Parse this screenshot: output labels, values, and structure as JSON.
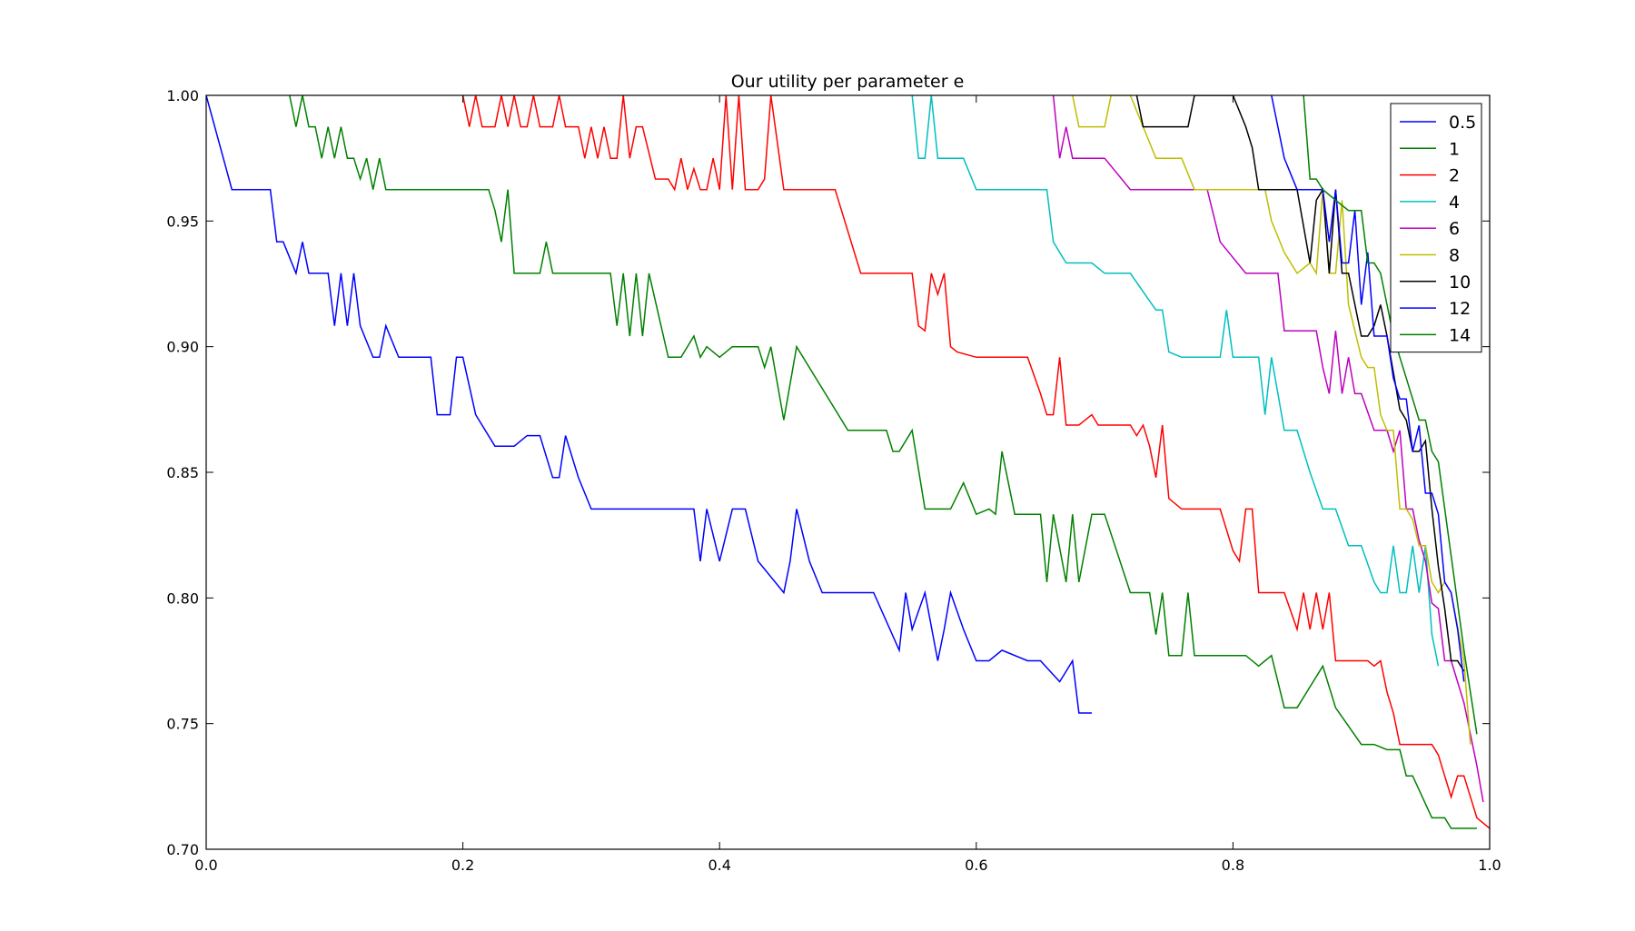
{
  "chart_data": {
    "type": "line",
    "title": "Our utility per parameter e",
    "xlabel": "",
    "ylabel": "",
    "xlim": [
      0.0,
      1.0
    ],
    "ylim": [
      0.7,
      1.0
    ],
    "xticks": [
      "0.0",
      "0.2",
      "0.4",
      "0.6",
      "0.8",
      "1.0"
    ],
    "yticks": [
      "0.70",
      "0.75",
      "0.80",
      "0.85",
      "0.90",
      "0.95",
      "1.00"
    ],
    "grid": false,
    "legend_position": "top-right",
    "series": [
      {
        "name": "0.5",
        "color": "#0000ff",
        "x": [
          0.0,
          0.02,
          0.05,
          0.055,
          0.06,
          0.07,
          0.075,
          0.08,
          0.095,
          0.1,
          0.105,
          0.11,
          0.115,
          0.12,
          0.13,
          0.135,
          0.14,
          0.15,
          0.175,
          0.18,
          0.19,
          0.195,
          0.2,
          0.21,
          0.225,
          0.235,
          0.24,
          0.25,
          0.26,
          0.27,
          0.275,
          0.28,
          0.29,
          0.3,
          0.35,
          0.38,
          0.385,
          0.39,
          0.4,
          0.41,
          0.42,
          0.43,
          0.45,
          0.455,
          0.46,
          0.47,
          0.48,
          0.49,
          0.5,
          0.52,
          0.54,
          0.545,
          0.55,
          0.56,
          0.57,
          0.575,
          0.58,
          0.59,
          0.6,
          0.61,
          0.62,
          0.64,
          0.65,
          0.665,
          0.67,
          0.675,
          0.68,
          0.685,
          0.69
        ],
        "y": [
          1.0,
          0.9625,
          0.9625,
          0.9417,
          0.9417,
          0.9292,
          0.9417,
          0.9292,
          0.9292,
          0.9083,
          0.9292,
          0.9083,
          0.9292,
          0.9083,
          0.8958,
          0.8958,
          0.9083,
          0.8958,
          0.8958,
          0.8729,
          0.8729,
          0.8958,
          0.8958,
          0.8729,
          0.8604,
          0.8604,
          0.8604,
          0.8646,
          0.8646,
          0.8479,
          0.8479,
          0.8646,
          0.8479,
          0.8354,
          0.8354,
          0.8354,
          0.8146,
          0.8354,
          0.8146,
          0.8354,
          0.8354,
          0.8146,
          0.8021,
          0.8146,
          0.8354,
          0.8146,
          0.8021,
          0.8021,
          0.8021,
          0.8021,
          0.7792,
          0.8021,
          0.7875,
          0.8021,
          0.775,
          0.7875,
          0.8021,
          0.7875,
          0.775,
          0.775,
          0.7792,
          0.775,
          0.775,
          0.7667,
          0.7708,
          0.775,
          0.7542,
          0.7542,
          0.7542
        ]
      },
      {
        "name": "1",
        "color": "#008000",
        "x": [
          0.065,
          0.07,
          0.075,
          0.08,
          0.085,
          0.09,
          0.095,
          0.1,
          0.105,
          0.11,
          0.115,
          0.12,
          0.125,
          0.13,
          0.135,
          0.14,
          0.2,
          0.22,
          0.225,
          0.23,
          0.235,
          0.24,
          0.26,
          0.265,
          0.27,
          0.28,
          0.3,
          0.315,
          0.32,
          0.325,
          0.33,
          0.335,
          0.34,
          0.345,
          0.36,
          0.37,
          0.38,
          0.385,
          0.39,
          0.4,
          0.41,
          0.42,
          0.43,
          0.435,
          0.44,
          0.45,
          0.46,
          0.5,
          0.52,
          0.53,
          0.535,
          0.54,
          0.55,
          0.56,
          0.58,
          0.59,
          0.6,
          0.61,
          0.615,
          0.62,
          0.63,
          0.65,
          0.655,
          0.66,
          0.67,
          0.675,
          0.68,
          0.69,
          0.695,
          0.7,
          0.72,
          0.735,
          0.74,
          0.745,
          0.75,
          0.76,
          0.765,
          0.77,
          0.8,
          0.81,
          0.82,
          0.825,
          0.83,
          0.84,
          0.85,
          0.87,
          0.88,
          0.9,
          0.91,
          0.92,
          0.93,
          0.935,
          0.94,
          0.955,
          0.96,
          0.965,
          0.97,
          0.99
        ],
        "y": [
          1.0,
          0.9875,
          1.0,
          0.9875,
          0.9875,
          0.975,
          0.9875,
          0.975,
          0.9875,
          0.975,
          0.975,
          0.9667,
          0.975,
          0.9625,
          0.975,
          0.9625,
          0.9625,
          0.9625,
          0.9542,
          0.9417,
          0.9625,
          0.9292,
          0.9292,
          0.9417,
          0.9292,
          0.9292,
          0.9292,
          0.9292,
          0.9083,
          0.9292,
          0.9042,
          0.9292,
          0.9042,
          0.9292,
          0.8958,
          0.8958,
          0.9042,
          0.8958,
          0.9,
          0.8958,
          0.9,
          0.9,
          0.9,
          0.8917,
          0.9,
          0.8708,
          0.9,
          0.8667,
          0.8667,
          0.8667,
          0.8583,
          0.8583,
          0.8667,
          0.8354,
          0.8354,
          0.8458,
          0.8333,
          0.8354,
          0.8333,
          0.8583,
          0.8333,
          0.8333,
          0.8063,
          0.8333,
          0.8063,
          0.8333,
          0.8063,
          0.8333,
          0.8333,
          0.8333,
          0.8021,
          0.8021,
          0.7854,
          0.8021,
          0.7771,
          0.7771,
          0.8021,
          0.7771,
          0.7771,
          0.7771,
          0.7729,
          0.775,
          0.7771,
          0.7563,
          0.7563,
          0.7729,
          0.7563,
          0.7417,
          0.7417,
          0.7396,
          0.7396,
          0.7292,
          0.7292,
          0.7125,
          0.7125,
          0.7125,
          0.7083,
          0.7083
        ]
      },
      {
        "name": "2",
        "color": "#ff0000",
        "x": [
          0.2,
          0.205,
          0.21,
          0.215,
          0.225,
          0.23,
          0.235,
          0.24,
          0.245,
          0.25,
          0.255,
          0.26,
          0.27,
          0.275,
          0.28,
          0.29,
          0.295,
          0.3,
          0.305,
          0.31,
          0.315,
          0.32,
          0.325,
          0.33,
          0.335,
          0.34,
          0.35,
          0.355,
          0.36,
          0.365,
          0.37,
          0.375,
          0.38,
          0.385,
          0.39,
          0.395,
          0.4,
          0.405,
          0.41,
          0.415,
          0.42,
          0.425,
          0.43,
          0.435,
          0.44,
          0.45,
          0.48,
          0.49,
          0.51,
          0.55,
          0.555,
          0.56,
          0.565,
          0.57,
          0.575,
          0.58,
          0.585,
          0.6,
          0.62,
          0.64,
          0.65,
          0.655,
          0.66,
          0.665,
          0.67,
          0.68,
          0.69,
          0.695,
          0.7,
          0.72,
          0.725,
          0.73,
          0.735,
          0.74,
          0.745,
          0.75,
          0.76,
          0.77,
          0.78,
          0.79,
          0.8,
          0.805,
          0.81,
          0.815,
          0.82,
          0.83,
          0.84,
          0.85,
          0.855,
          0.86,
          0.865,
          0.87,
          0.875,
          0.88,
          0.89,
          0.9,
          0.905,
          0.91,
          0.915,
          0.92,
          0.925,
          0.93,
          0.94,
          0.945,
          0.95,
          0.955,
          0.96,
          0.965,
          0.97,
          0.975,
          0.98,
          0.99,
          1.0
        ],
        "y": [
          1.0,
          0.9875,
          1.0,
          0.9875,
          0.9875,
          1.0,
          0.9875,
          1.0,
          0.9875,
          0.9875,
          1.0,
          0.9875,
          0.9875,
          1.0,
          0.9875,
          0.9875,
          0.975,
          0.9875,
          0.975,
          0.9875,
          0.975,
          0.975,
          1.0,
          0.975,
          0.9875,
          0.9875,
          0.9667,
          0.9667,
          0.9667,
          0.9625,
          0.975,
          0.9625,
          0.9708,
          0.9625,
          0.9625,
          0.975,
          0.9625,
          1.0,
          0.9625,
          1.0,
          0.9625,
          0.9625,
          0.9625,
          0.9667,
          1.0,
          0.9625,
          0.9625,
          0.9625,
          0.9292,
          0.9292,
          0.9083,
          0.9063,
          0.9292,
          0.9208,
          0.9292,
          0.9,
          0.8979,
          0.8958,
          0.8958,
          0.8958,
          0.8813,
          0.8729,
          0.8729,
          0.8958,
          0.8688,
          0.8688,
          0.8729,
          0.8688,
          0.8688,
          0.8688,
          0.8646,
          0.8688,
          0.8604,
          0.8479,
          0.8688,
          0.8396,
          0.8354,
          0.8354,
          0.8354,
          0.8354,
          0.8188,
          0.8146,
          0.8354,
          0.8354,
          0.8021,
          0.8021,
          0.8021,
          0.7875,
          0.8021,
          0.7875,
          0.8021,
          0.7875,
          0.8021,
          0.775,
          0.775,
          0.775,
          0.775,
          0.7729,
          0.775,
          0.7625,
          0.7542,
          0.7417,
          0.7417,
          0.7417,
          0.7417,
          0.7417,
          0.7375,
          0.7292,
          0.7208,
          0.7292,
          0.7292,
          0.7125,
          0.7083
        ]
      },
      {
        "name": "4",
        "color": "#00bfbf",
        "x": [
          0.55,
          0.555,
          0.56,
          0.565,
          0.57,
          0.575,
          0.58,
          0.59,
          0.6,
          0.61,
          0.64,
          0.65,
          0.655,
          0.66,
          0.67,
          0.68,
          0.69,
          0.7,
          0.72,
          0.74,
          0.745,
          0.75,
          0.76,
          0.77,
          0.78,
          0.79,
          0.795,
          0.8,
          0.81,
          0.82,
          0.825,
          0.83,
          0.835,
          0.84,
          0.85,
          0.86,
          0.87,
          0.88,
          0.89,
          0.9,
          0.91,
          0.915,
          0.92,
          0.925,
          0.93,
          0.935,
          0.94,
          0.945,
          0.95,
          0.955,
          0.96
        ],
        "y": [
          1.0,
          0.975,
          0.975,
          1.0,
          0.975,
          0.975,
          0.975,
          0.975,
          0.9625,
          0.9625,
          0.9625,
          0.9625,
          0.9625,
          0.9417,
          0.9333,
          0.9333,
          0.9333,
          0.9292,
          0.9292,
          0.9146,
          0.9146,
          0.8979,
          0.8958,
          0.8958,
          0.8958,
          0.8958,
          0.9146,
          0.8958,
          0.8958,
          0.8958,
          0.8729,
          0.8958,
          0.8813,
          0.8667,
          0.8667,
          0.85,
          0.8354,
          0.8354,
          0.8208,
          0.8208,
          0.8063,
          0.8021,
          0.8021,
          0.8208,
          0.8021,
          0.8021,
          0.8208,
          0.8021,
          0.8208,
          0.7854,
          0.7729
        ]
      },
      {
        "name": "6",
        "color": "#bf00bf",
        "x": [
          0.66,
          0.665,
          0.67,
          0.675,
          0.68,
          0.7,
          0.72,
          0.76,
          0.78,
          0.79,
          0.81,
          0.82,
          0.835,
          0.84,
          0.86,
          0.865,
          0.87,
          0.875,
          0.88,
          0.885,
          0.89,
          0.895,
          0.9,
          0.91,
          0.915,
          0.92,
          0.925,
          0.93,
          0.935,
          0.94,
          0.945,
          0.95,
          0.955,
          0.96,
          0.965,
          0.97,
          0.98,
          0.99,
          0.995
        ],
        "y": [
          1.0,
          0.975,
          0.9875,
          0.975,
          0.975,
          0.975,
          0.9625,
          0.9625,
          0.9625,
          0.9417,
          0.9292,
          0.9292,
          0.9292,
          0.9063,
          0.9063,
          0.9063,
          0.8917,
          0.8813,
          0.9063,
          0.8813,
          0.8958,
          0.8813,
          0.8813,
          0.8667,
          0.8667,
          0.8667,
          0.8583,
          0.8667,
          0.8354,
          0.8354,
          0.8229,
          0.8146,
          0.7979,
          0.7958,
          0.775,
          0.775,
          0.7583,
          0.7333,
          0.7188
        ]
      },
      {
        "name": "8",
        "color": "#bfbf00",
        "x": [
          0.675,
          0.68,
          0.69,
          0.7,
          0.705,
          0.72,
          0.73,
          0.74,
          0.76,
          0.77,
          0.78,
          0.8,
          0.82,
          0.825,
          0.83,
          0.84,
          0.85,
          0.86,
          0.865,
          0.87,
          0.875,
          0.88,
          0.885,
          0.89,
          0.9,
          0.905,
          0.91,
          0.915,
          0.92,
          0.925,
          0.93,
          0.935,
          0.94,
          0.945,
          0.95,
          0.955,
          0.96,
          0.965,
          0.97,
          0.98,
          0.985
        ],
        "y": [
          1.0,
          0.9875,
          0.9875,
          0.9875,
          1.0,
          1.0,
          0.9875,
          0.975,
          0.975,
          0.9625,
          0.9625,
          0.9625,
          0.9625,
          0.9625,
          0.95,
          0.9375,
          0.9292,
          0.9333,
          0.9292,
          0.9625,
          0.9292,
          0.9292,
          0.9583,
          0.9167,
          0.8958,
          0.8917,
          0.8917,
          0.8729,
          0.8667,
          0.8667,
          0.8354,
          0.8354,
          0.8313,
          0.8208,
          0.8208,
          0.8063,
          0.8021,
          0.8063,
          0.8021,
          0.775,
          0.7417
        ]
      },
      {
        "name": "10",
        "color": "#000000",
        "x": [
          0.725,
          0.73,
          0.735,
          0.75,
          0.765,
          0.77,
          0.8,
          0.81,
          0.815,
          0.82,
          0.83,
          0.84,
          0.85,
          0.86,
          0.865,
          0.87,
          0.875,
          0.88,
          0.885,
          0.89,
          0.9,
          0.905,
          0.91,
          0.915,
          0.92,
          0.93,
          0.935,
          0.94,
          0.945,
          0.95,
          0.955,
          0.96,
          0.965,
          0.97,
          0.975,
          0.98
        ],
        "y": [
          1.0,
          0.9875,
          0.9875,
          0.9875,
          0.9875,
          1.0,
          1.0,
          0.9875,
          0.9792,
          0.9625,
          0.9625,
          0.9625,
          0.9625,
          0.9333,
          0.9583,
          0.9625,
          0.9292,
          0.9625,
          0.9292,
          0.9292,
          0.9042,
          0.9042,
          0.9083,
          0.9167,
          0.9042,
          0.875,
          0.8708,
          0.8583,
          0.8583,
          0.8625,
          0.8354,
          0.8125,
          0.7958,
          0.775,
          0.775,
          0.7708
        ]
      },
      {
        "name": "12",
        "color": "#0000ff",
        "x": [
          0.83,
          0.84,
          0.85,
          0.86,
          0.87,
          0.875,
          0.88,
          0.885,
          0.89,
          0.895,
          0.9,
          0.905,
          0.91,
          0.915,
          0.92,
          0.925,
          0.93,
          0.935,
          0.94,
          0.945,
          0.95,
          0.955,
          0.96,
          0.965,
          0.97,
          0.975,
          0.98
        ],
        "y": [
          1.0,
          0.975,
          0.9625,
          0.9625,
          0.9625,
          0.9417,
          0.9625,
          0.9333,
          0.9333,
          0.9542,
          0.9167,
          0.9375,
          0.9042,
          0.9042,
          0.9042,
          0.8875,
          0.8792,
          0.8792,
          0.8583,
          0.8687,
          0.8417,
          0.8417,
          0.8333,
          0.8063,
          0.8021,
          0.7875,
          0.7667
        ]
      },
      {
        "name": "14",
        "color": "#008000",
        "x": [
          0.855,
          0.86,
          0.865,
          0.87,
          0.88,
          0.89,
          0.9,
          0.905,
          0.91,
          0.915,
          0.92,
          0.925,
          0.93,
          0.935,
          0.94,
          0.945,
          0.95,
          0.955,
          0.96,
          0.97,
          0.98,
          0.99
        ],
        "y": [
          1.0,
          0.9667,
          0.9667,
          0.9625,
          0.9583,
          0.9542,
          0.9542,
          0.9333,
          0.9333,
          0.9292,
          0.9167,
          0.9042,
          0.8958,
          0.8875,
          0.8792,
          0.8708,
          0.8708,
          0.8583,
          0.8542,
          0.8167,
          0.7792,
          0.7458
        ]
      }
    ]
  }
}
